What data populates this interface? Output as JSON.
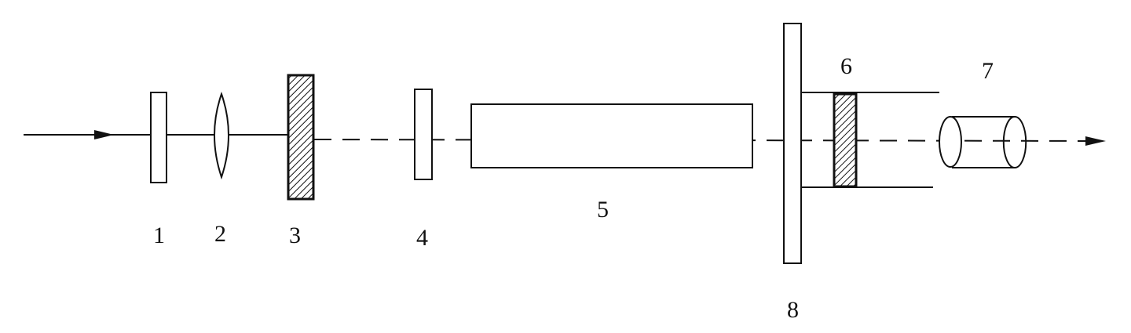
{
  "labels": {
    "c1": "1",
    "c2": "2",
    "c3": "3",
    "c4": "4",
    "c5": "5",
    "c6": "6",
    "c7": "7",
    "c8": "8"
  },
  "colors": {
    "stroke": "#111111",
    "background": "#ffffff"
  }
}
